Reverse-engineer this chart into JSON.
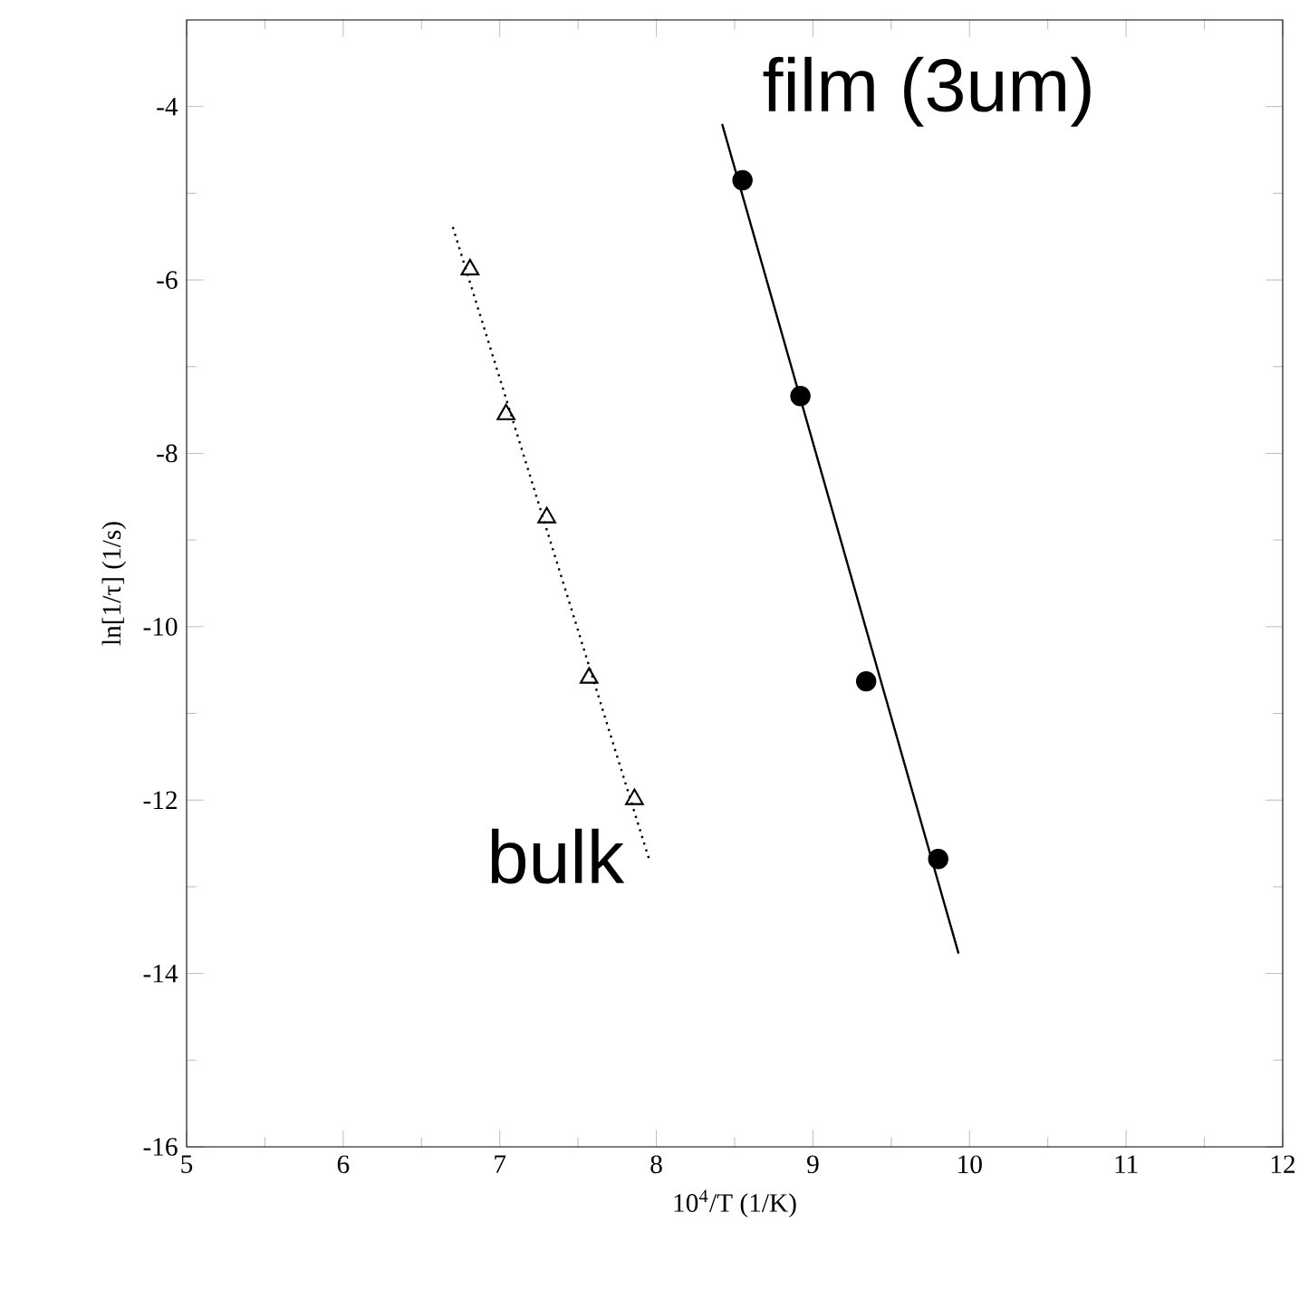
{
  "chart_data": {
    "type": "scatter",
    "xlabel": "10$^{4}$/T (1/K)",
    "ylabel": "ln[1/τ] (1/s)",
    "xlim": [
      5,
      12
    ],
    "xticks": [
      5,
      6,
      7,
      8,
      9,
      10,
      11,
      12
    ],
    "ylim": [
      -16,
      -3
    ],
    "yticks": [
      -16,
      -14,
      -12,
      -10,
      -8,
      -6,
      -4
    ],
    "grid": false,
    "legend": false,
    "series": [
      {
        "name": "film (3um)",
        "marker": "circle",
        "color": "#000000",
        "x": [
          8.55,
          8.92,
          9.34,
          9.8
        ],
        "values": [
          -4.85,
          -7.34,
          -10.63,
          -12.68
        ]
      },
      {
        "name": "bulk",
        "marker": "triangle",
        "color": "#000000",
        "x": [
          6.81,
          7.04,
          7.3,
          7.57,
          7.86
        ],
        "values": [
          -5.88,
          -7.55,
          -8.74,
          -10.59,
          -11.99
        ]
      },
      {
        "type": "line",
        "line_style": "solid",
        "marker": "none",
        "color": "#000000",
        "x": [
          8.42,
          9.93
        ],
        "values": [
          -4.2,
          -13.77
        ]
      },
      {
        "type": "line",
        "line_style": "dotted",
        "marker": "none",
        "color": "#000000",
        "x": [
          6.7,
          7.96
        ],
        "values": [
          -5.39,
          -12.72
        ]
      }
    ]
  }
}
